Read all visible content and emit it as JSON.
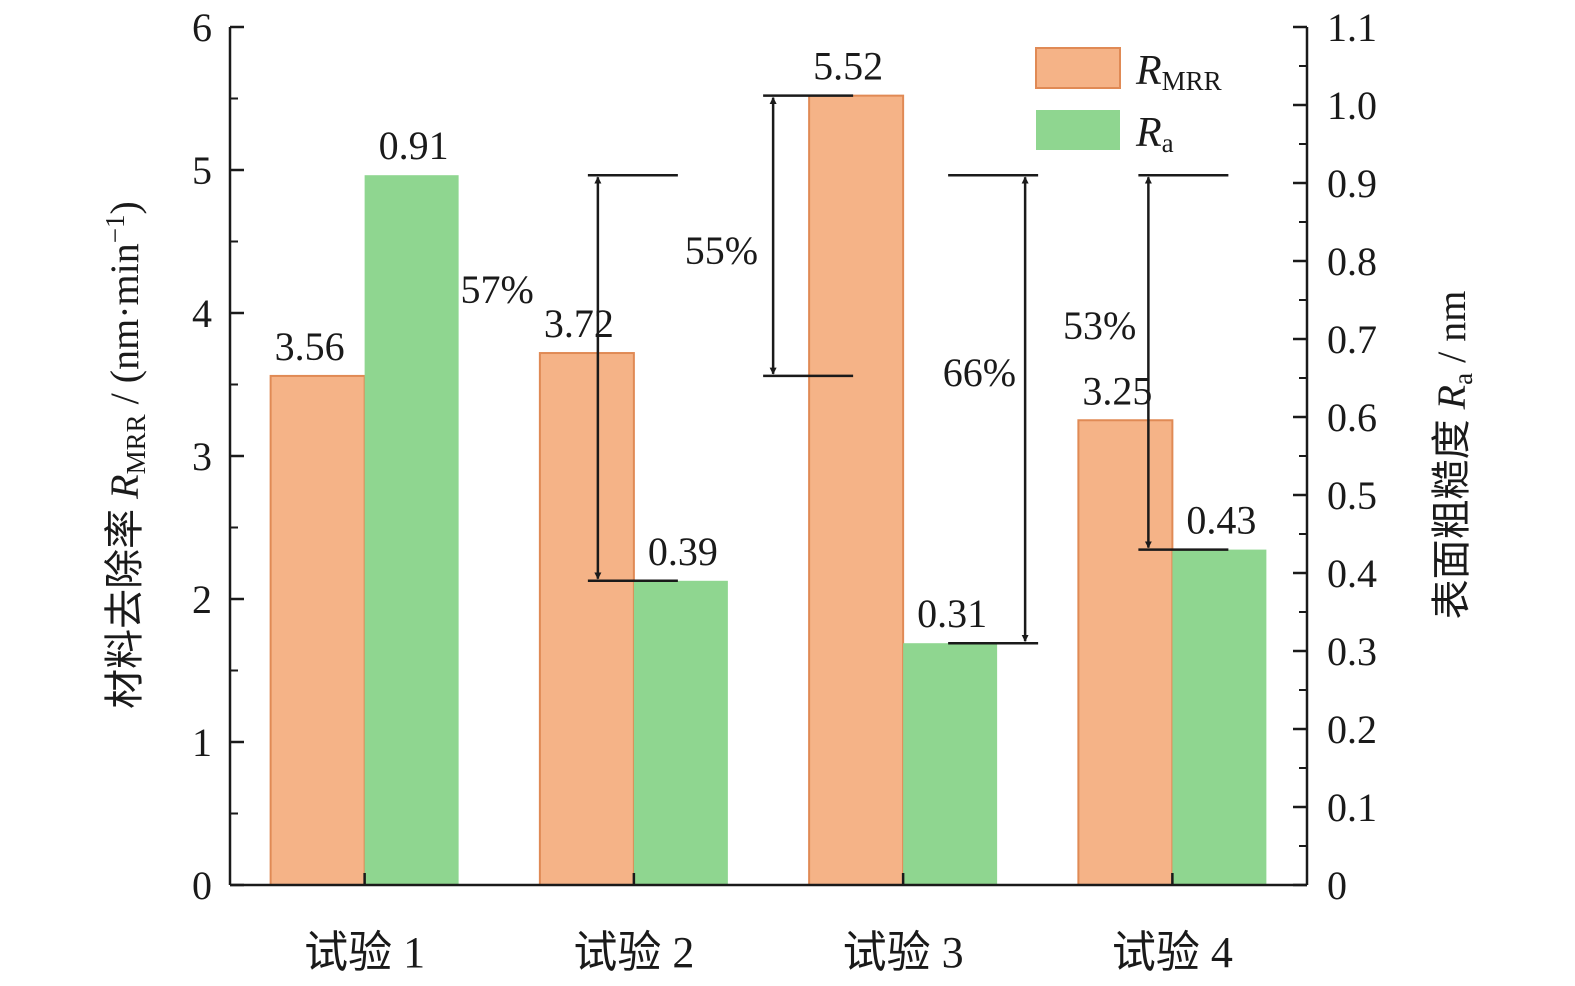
{
  "chart_data": {
    "type": "bar",
    "categories": [
      "试验 1",
      "试验 2",
      "试验 3",
      "试验 4"
    ],
    "series": [
      {
        "name": "R_MRR",
        "legend_main": "R",
        "legend_sub": "MRR",
        "axis": "left",
        "color": "#f5b387",
        "edge_color": "#e08a55",
        "values": [
          3.56,
          3.72,
          5.52,
          3.25
        ],
        "labels": [
          "3.56",
          "3.72",
          "5.52",
          "3.25"
        ]
      },
      {
        "name": "R_a",
        "legend_main": "R",
        "legend_sub": "a",
        "axis": "right",
        "color": "#8fd690",
        "values": [
          0.91,
          0.39,
          0.31,
          0.43
        ],
        "labels": [
          "0.91",
          "0.39",
          "0.31",
          "0.43"
        ]
      }
    ],
    "y_left": {
      "label_pre": "材料去除率 ",
      "label_italic": "R",
      "label_sub": "MRR",
      "label_post": " / (nm·min",
      "label_sup": "−1",
      "label_end": ")",
      "ylim": [
        0,
        6
      ],
      "ticks": [
        "0",
        "1",
        "2",
        "3",
        "4",
        "5",
        "6"
      ]
    },
    "y_right": {
      "label_pre": "表面粗糙度 ",
      "label_italic": "R",
      "label_sub": "a",
      "label_post": " / nm",
      "ylim": [
        0,
        1.1
      ],
      "ticks": [
        "0",
        "0.1",
        "0.2",
        "0.3",
        "0.4",
        "0.5",
        "0.6",
        "0.7",
        "0.8",
        "0.9",
        "1.0",
        "1.1"
      ]
    },
    "annotations": [
      {
        "text": "57%",
        "series": "R_a",
        "from": 0,
        "to": 1,
        "from_value": 0.91,
        "to_value": 0.39
      },
      {
        "text": "55%",
        "series": "R_MRR",
        "from": 0,
        "to": 2,
        "from_value": 3.56,
        "to_value": 5.52
      },
      {
        "text": "66%",
        "series": "R_a",
        "from": 0,
        "to": 2,
        "from_value": 0.91,
        "to_value": 0.31
      },
      {
        "text": "53%",
        "series": "R_a",
        "from": 0,
        "to": 3,
        "from_value": 0.91,
        "to_value": 0.43
      }
    ],
    "legend": "top-right",
    "grid": false
  }
}
